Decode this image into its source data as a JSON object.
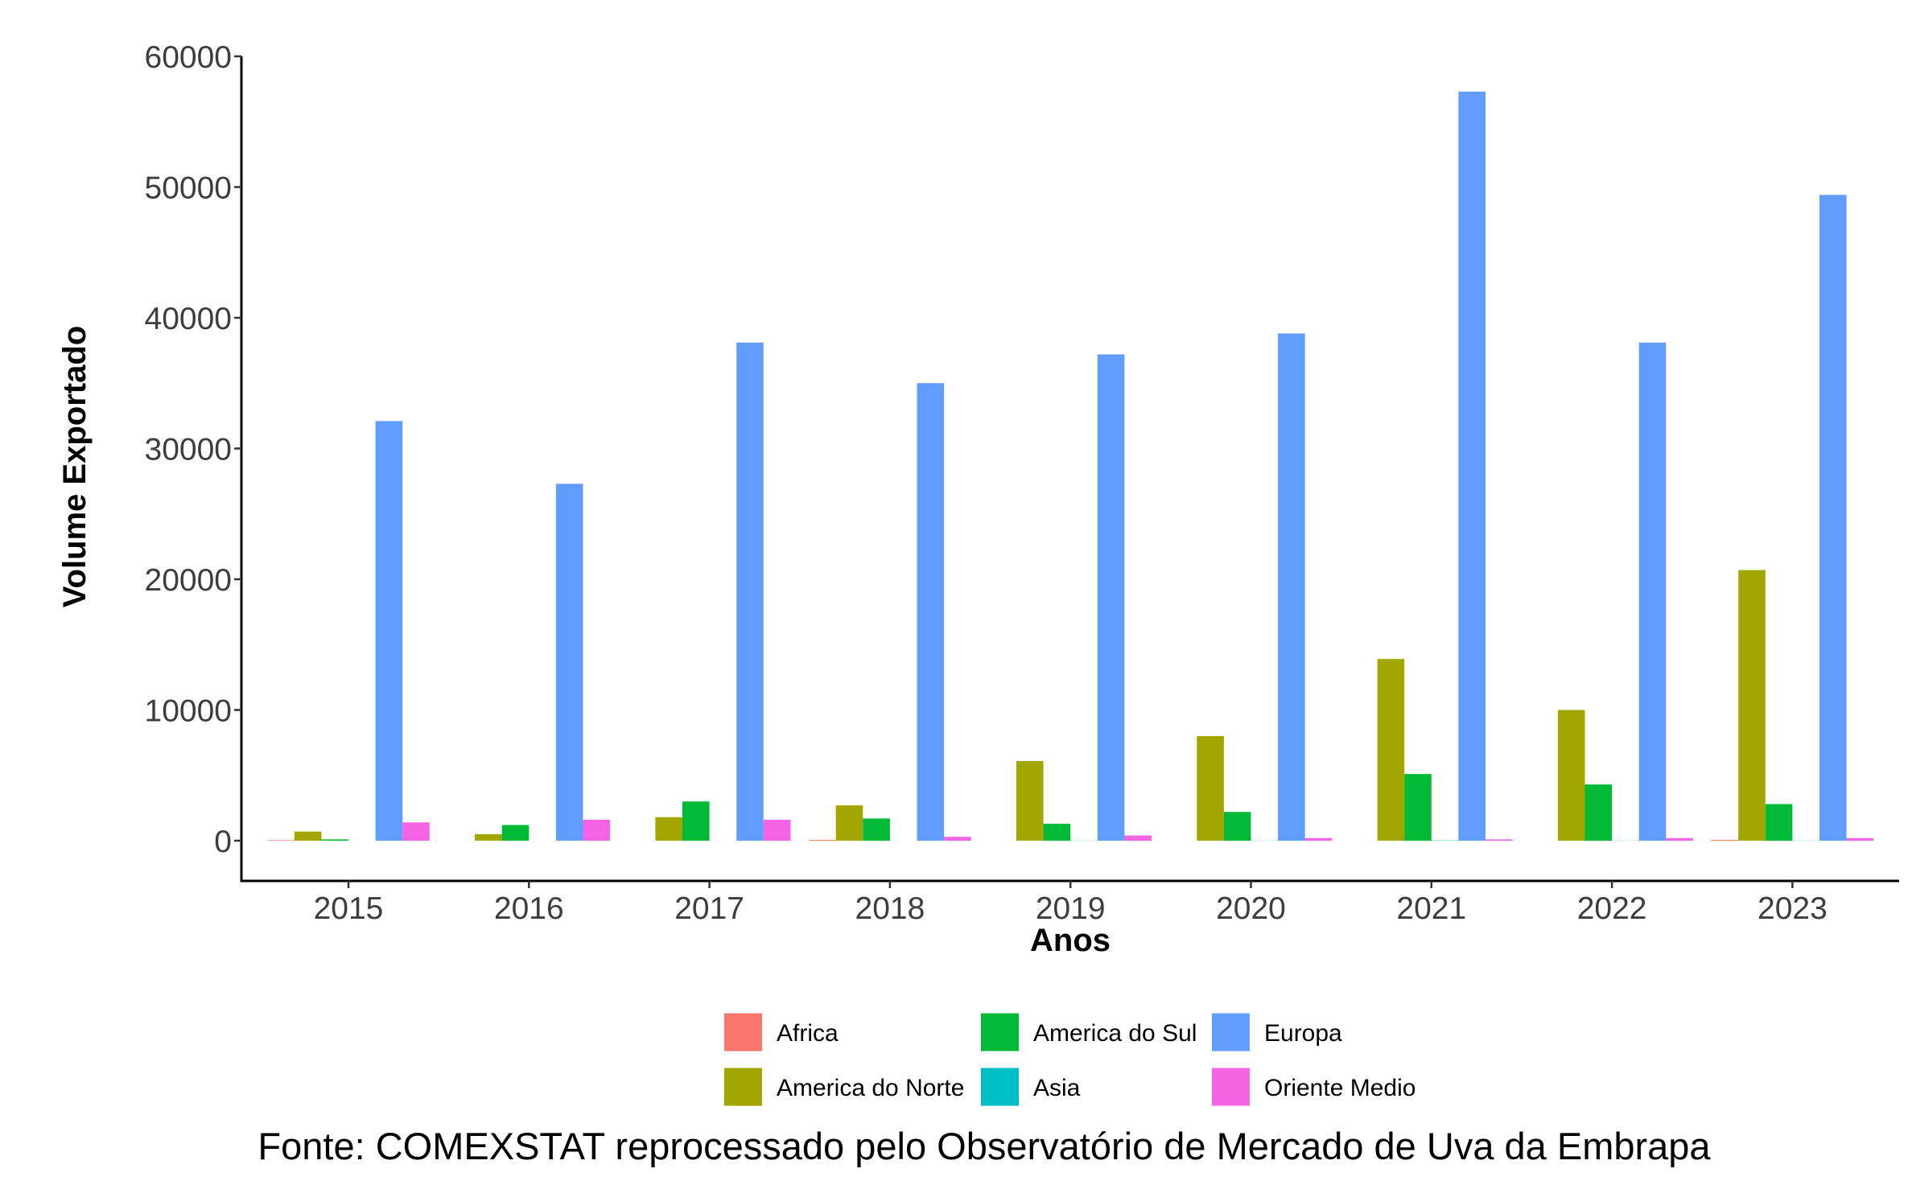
{
  "chart_data": {
    "type": "bar",
    "title": "",
    "xlabel": "Anos",
    "ylabel": "Volume Exportado",
    "ylim": [
      0,
      60000
    ],
    "yticks": [
      0,
      10000,
      20000,
      30000,
      40000,
      50000,
      60000
    ],
    "grid": false,
    "legend_position": "bottom",
    "categories": [
      "2015",
      "2016",
      "2017",
      "2018",
      "2019",
      "2020",
      "2021",
      "2022",
      "2023"
    ],
    "series": [
      {
        "name": "Africa",
        "color": "#F8766D",
        "values": [
          40,
          0,
          0,
          60,
          0,
          0,
          0,
          0,
          60
        ]
      },
      {
        "name": "America do Norte",
        "color": "#A3A500",
        "values": [
          700,
          500,
          1800,
          2700,
          6100,
          8000,
          13900,
          10000,
          20700
        ]
      },
      {
        "name": "America do Sul",
        "color": "#00BA38",
        "values": [
          100,
          1200,
          3000,
          1700,
          1300,
          2200,
          5100,
          4300,
          2800
        ]
      },
      {
        "name": "Asia",
        "color": "#00BFC4",
        "values": [
          0,
          0,
          0,
          0,
          10,
          10,
          20,
          10,
          10
        ]
      },
      {
        "name": "Europa",
        "color": "#619CFF",
        "values": [
          32100,
          27300,
          38100,
          35000,
          37200,
          38800,
          57300,
          38100,
          49400
        ]
      },
      {
        "name": "Oriente Medio",
        "color": "#F564E3",
        "values": [
          1400,
          1600,
          1600,
          300,
          400,
          200,
          100,
          200,
          200
        ]
      }
    ],
    "source": "Fonte: COMEXSTAT reprocessado pelo Observatório de Mercado de Uva da Embrapa"
  }
}
